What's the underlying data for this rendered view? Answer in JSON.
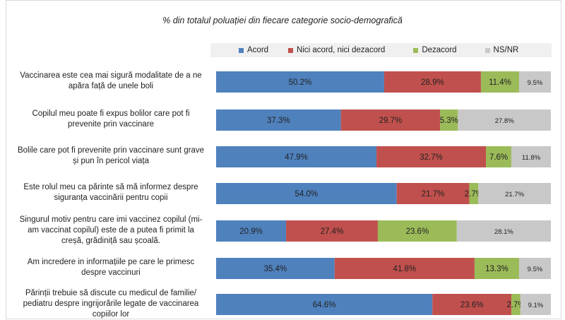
{
  "chart_data": {
    "type": "bar",
    "orientation": "horizontal",
    "stacked": true,
    "percent_stacked": true,
    "title": "% din totalul poluației din fiecare categorie socio-demografică",
    "legend_position": "top",
    "categories": [
      "Vaccinarea este cea mai sigură modalitate de a ne apăra față de unele boli",
      "Copilul meu poate fi  expus  bolilor care pot fi prevenite prin vaccinare",
      "Bolile care pot fi prevenite prin vaccinare sunt grave și pun în pericol viața",
      "Este rolul meu ca părinte să mă informez despre siguranța vaccinării pentru copii",
      "Singurul motiv pentru care imi vaccinez copilul (mi-am vaccinat copilul) este  de a putea fi primit  la creșă, grădiniță sau școală.",
      "Am incredere in informațiile pe care le primesc despre vaccinuri",
      "Părinții trebuie să discute cu medicul de familie/ pediatru despre ingrijorările legate de vaccinarea copiilor lor"
    ],
    "series": [
      {
        "name": "Acord",
        "color": "#4f81bd",
        "values": [
          50.2,
          37.3,
          47.9,
          54.0,
          20.9,
          35.4,
          64.6
        ],
        "labels": [
          "50.2%",
          "37.3%",
          "47.9%",
          "54.0%",
          "20.9%",
          "35.4%",
          "64.6%"
        ]
      },
      {
        "name": "Nici acord, nici dezacord",
        "color": "#c0504d",
        "values": [
          28.9,
          29.7,
          32.7,
          21.7,
          27.4,
          41.8,
          23.6
        ],
        "labels": [
          "28.9%",
          "29.7%",
          "32.7%",
          "21.7%",
          "27.4%",
          "41.8%",
          "23.6%"
        ]
      },
      {
        "name": "Dezacord",
        "color": "#9bbb59",
        "values": [
          11.4,
          5.3,
          7.6,
          2.7,
          23.6,
          13.3,
          2.7
        ],
        "labels": [
          "11.4%",
          "5.3%",
          "7.6%",
          "2.7%",
          "23.6%",
          "13.3%",
          "2.7%"
        ]
      },
      {
        "name": "NS/NR",
        "color": "#c8c8c8",
        "values": [
          9.5,
          27.8,
          11.8,
          21.7,
          28.1,
          9.5,
          9.1
        ],
        "labels": [
          "9.5%",
          "27.8%",
          "11.8%",
          "21.7%",
          "28.1%",
          "9.5%",
          "9.1%"
        ]
      }
    ]
  }
}
